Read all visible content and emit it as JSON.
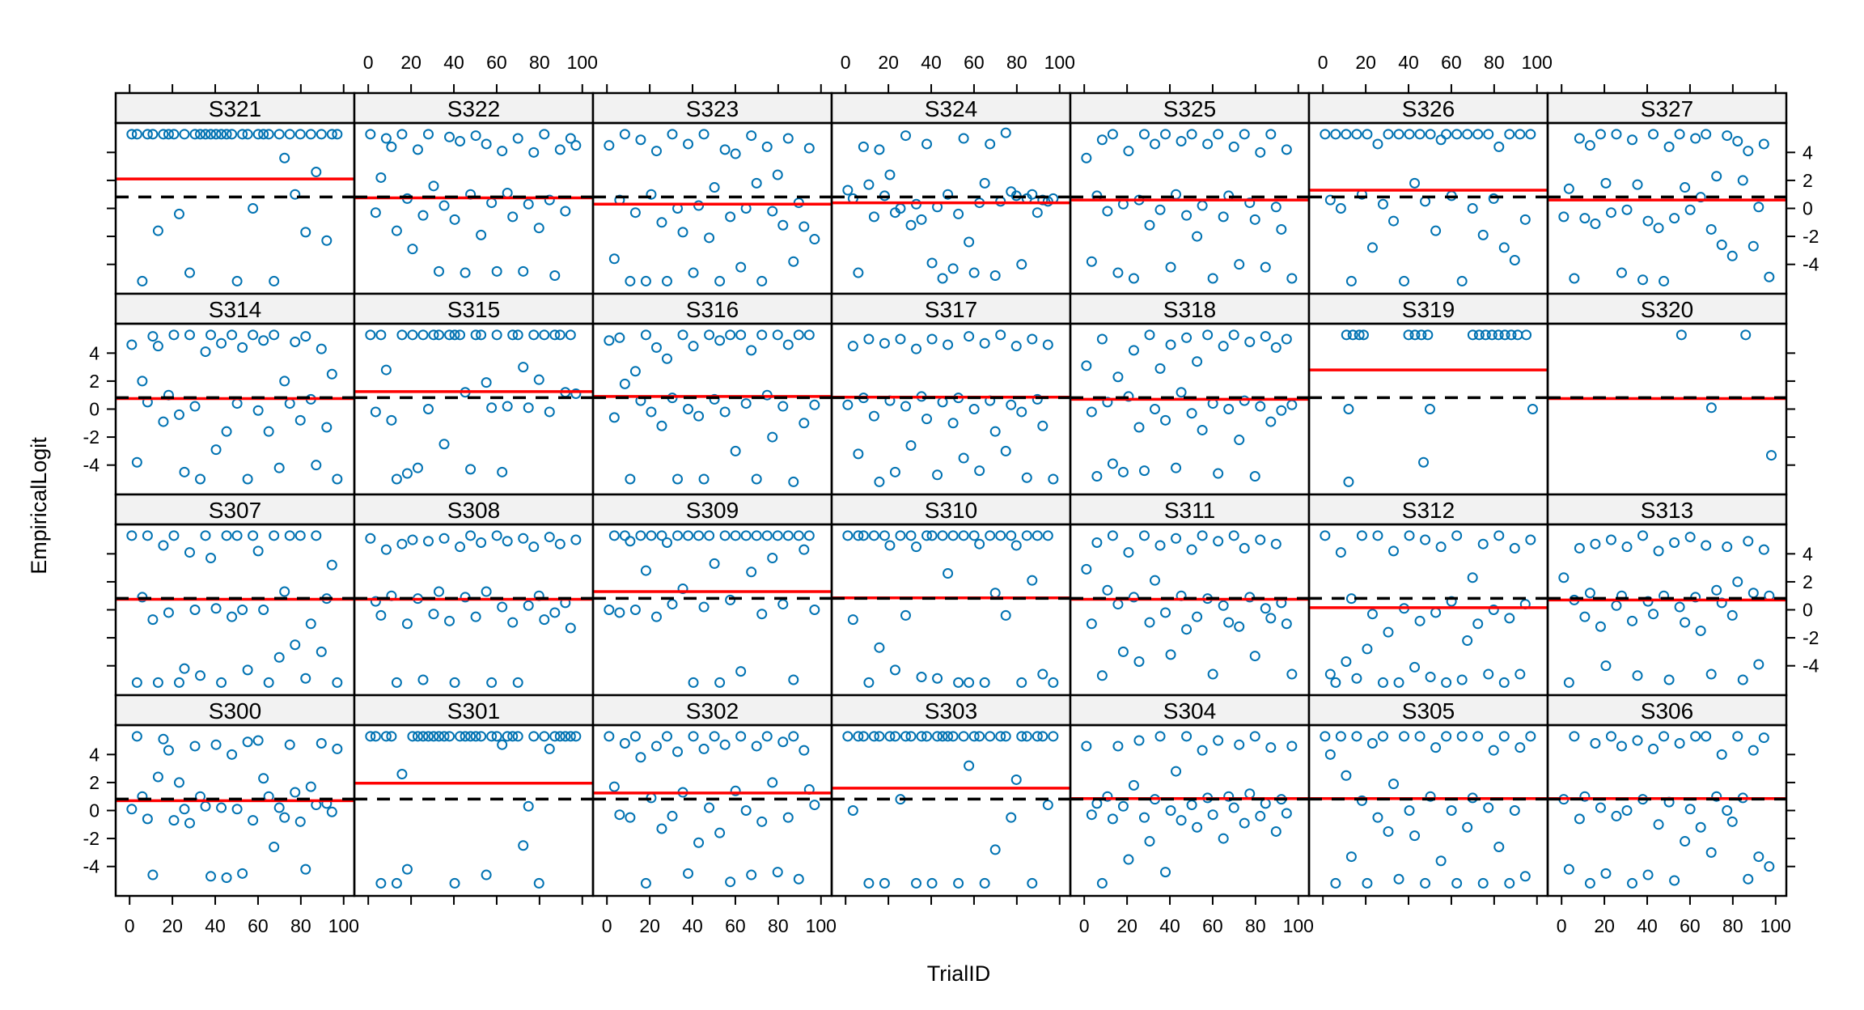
{
  "chart_data": {
    "type": "scatter",
    "layout": "lattice 7 columns x 4 rows",
    "xlabel": "TrialID",
    "ylabel": "EmpiricalLogit",
    "xlim": [
      -6.5,
      105
    ],
    "ylim": [
      -6.1,
      6.1
    ],
    "x_ticks": [
      "0",
      "20",
      "40",
      "60",
      "80",
      "100"
    ],
    "x_tick_values": [
      0,
      20,
      40,
      60,
      80,
      100
    ],
    "y_ticks": [
      "-4",
      "-2",
      "0",
      "2",
      "4"
    ],
    "y_tick_values": [
      -4,
      -2,
      0,
      2,
      4
    ],
    "reference_line": 0.82,
    "colors": {
      "points": "#0072B2",
      "mean_line": "#ff0000",
      "reference_line": "#000000",
      "strip": "#f2f2f2"
    },
    "panels": [
      {
        "name": "S321",
        "mean": 2.1,
        "y": [
          5.3,
          5.3,
          -5.2,
          5.3,
          5.3,
          -1.6,
          5.3,
          5.3,
          5.3,
          -0.4,
          5.3,
          -4.6,
          5.3,
          5.3,
          5.3,
          5.3,
          5.3,
          5.3,
          5.3,
          5.3,
          -5.2,
          5.3,
          5.3,
          0,
          5.3,
          5.3,
          5.3,
          -5.2,
          5.3,
          3.6,
          5.3,
          1.0,
          5.3,
          -1.7,
          5.3,
          2.6,
          5.3,
          -2.3,
          5.3,
          5.3
        ]
      },
      {
        "name": "S322",
        "mean": 0.75,
        "y": [
          5.3,
          -0.3,
          2.2,
          5.0,
          4.4,
          -1.6,
          5.3,
          0.7,
          -2.9,
          4.2,
          -0.5,
          5.3,
          1.6,
          -4.5,
          0.2,
          5.1,
          -0.8,
          4.8,
          -4.6,
          1.0,
          5.2,
          -1.9,
          4.6,
          0.4,
          -4.5,
          4.1,
          1.1,
          -0.6,
          5.0,
          -4.5,
          0.3,
          4.0,
          -1.4,
          5.3,
          0.6,
          -4.8,
          4.2,
          -0.2,
          5.0,
          4.5
        ]
      },
      {
        "name": "S323",
        "mean": 0.3,
        "y": [
          4.5,
          -3.6,
          0.6,
          5.3,
          -5.2,
          -0.3,
          4.9,
          -5.2,
          1.0,
          4.1,
          -1.0,
          -5.2,
          5.3,
          0.0,
          -1.7,
          4.6,
          -4.6,
          0.2,
          5.3,
          -2.1,
          1.5,
          -5.2,
          4.2,
          -0.6,
          3.9,
          -4.2,
          0.0,
          5.2,
          1.8,
          -5.2,
          4.4,
          -0.2,
          2.4,
          -1.2,
          5.0,
          -3.8,
          0.4,
          -1.3,
          4.3,
          -2.2
        ]
      },
      {
        "name": "S324",
        "mean": 0.4,
        "y": [
          1.3,
          0.7,
          -4.6,
          4.4,
          1.7,
          -0.6,
          4.2,
          0.9,
          2.4,
          -0.3,
          0.0,
          5.2,
          -1.2,
          0.3,
          -0.8,
          4.6,
          -3.9,
          0.1,
          -5.0,
          1.0,
          -4.3,
          -0.4,
          5.0,
          -2.4,
          -4.6,
          0.4,
          1.8,
          4.6,
          -4.8,
          0.5,
          5.4,
          1.2,
          0.9,
          -4.0,
          0.7,
          1.0,
          -0.3,
          0.6,
          0.5,
          0.7
        ]
      },
      {
        "name": "S325",
        "mean": 0.6,
        "y": [
          3.6,
          -3.8,
          0.9,
          4.9,
          -0.2,
          5.3,
          -4.6,
          0.3,
          4.1,
          -5.0,
          0.6,
          5.3,
          -1.2,
          4.6,
          -0.1,
          5.3,
          -4.2,
          1.0,
          4.8,
          -0.5,
          5.3,
          -2.0,
          0.2,
          4.6,
          -5.0,
          5.3,
          -0.6,
          0.9,
          4.4,
          -4.0,
          5.3,
          0.4,
          -0.8,
          4.0,
          -4.2,
          5.3,
          0.1,
          -1.5,
          4.2,
          -5.0
        ]
      },
      {
        "name": "S326",
        "mean": 1.3,
        "y": [
          5.3,
          0.6,
          5.3,
          0.0,
          5.3,
          -5.2,
          5.3,
          1.0,
          5.3,
          -2.8,
          4.6,
          0.3,
          5.3,
          -0.9,
          5.3,
          -5.2,
          5.3,
          1.8,
          5.3,
          0.5,
          5.3,
          -1.6,
          4.9,
          5.3,
          0.9,
          5.3,
          -5.2,
          5.3,
          0.0,
          5.3,
          -1.9,
          5.3,
          0.7,
          4.4,
          -2.8,
          5.3,
          -3.7,
          5.3,
          -0.8,
          5.3
        ]
      },
      {
        "name": "S327",
        "mean": 0.6,
        "y": [
          -0.6,
          1.4,
          -5.0,
          5.0,
          -0.7,
          4.5,
          -1.1,
          5.3,
          1.8,
          -0.3,
          5.3,
          -4.6,
          -0.1,
          4.9,
          1.7,
          -5.1,
          -0.9,
          5.3,
          -1.4,
          -5.2,
          4.4,
          -0.7,
          5.3,
          1.5,
          -0.1,
          5.0,
          0.8,
          5.3,
          -1.5,
          2.3,
          -2.6,
          5.2,
          -3.4,
          4.8,
          2.0,
          4.1,
          -2.7,
          0.1,
          4.6,
          -4.9
        ]
      },
      {
        "name": "S314",
        "mean": 0.75,
        "y": [
          4.6,
          -3.8,
          2.0,
          0.5,
          5.2,
          4.5,
          -0.9,
          1.0,
          5.3,
          -0.4,
          -4.5,
          5.3,
          0.2,
          -5.0,
          4.1,
          5.3,
          -2.9,
          4.7,
          -1.6,
          5.3,
          0.4,
          4.4,
          -5.0,
          5.3,
          -0.1,
          4.9,
          -1.6,
          5.3,
          -4.2,
          2.0,
          0.4,
          4.8,
          -0.8,
          5.2,
          0.7,
          -4.0,
          4.3,
          -1.3,
          2.5,
          -5.0
        ]
      },
      {
        "name": "S315",
        "mean": 1.25,
        "y": [
          5.3,
          -0.2,
          5.3,
          2.8,
          -0.8,
          -5.0,
          5.3,
          -4.6,
          5.3,
          -4.2,
          5.3,
          0.0,
          5.3,
          5.3,
          -2.5,
          5.3,
          5.3,
          5.3,
          1.2,
          -4.3,
          5.3,
          5.3,
          1.9,
          0.1,
          5.3,
          -4.5,
          0.2,
          5.3,
          5.3,
          3.0,
          0.1,
          5.3,
          2.1,
          5.3,
          -0.2,
          5.3,
          5.3,
          1.2,
          5.3,
          1.1
        ]
      },
      {
        "name": "S316",
        "mean": 0.9,
        "y": [
          4.9,
          -0.6,
          5.1,
          1.8,
          -5.0,
          2.7,
          0.6,
          5.3,
          -0.2,
          4.4,
          -1.2,
          3.6,
          0.8,
          -5.0,
          5.3,
          0.0,
          4.5,
          -0.5,
          -5.0,
          5.3,
          0.7,
          4.9,
          -0.2,
          5.3,
          -3.0,
          5.3,
          0.4,
          4.2,
          -5.0,
          5.3,
          1.0,
          -2.0,
          5.3,
          0.2,
          4.6,
          -5.2,
          5.3,
          -1.0,
          5.3,
          0.3
        ]
      },
      {
        "name": "S317",
        "mean": 0.85,
        "y": [
          0.3,
          4.5,
          -3.2,
          0.8,
          5.0,
          -0.5,
          -5.2,
          4.7,
          0.6,
          -4.5,
          5.0,
          0.2,
          -2.6,
          4.3,
          0.9,
          -0.7,
          5.0,
          -4.7,
          0.5,
          4.6,
          -1.0,
          0.8,
          -3.5,
          5.2,
          0.0,
          -4.4,
          4.7,
          0.6,
          -1.6,
          5.3,
          -3.0,
          0.3,
          4.5,
          -0.2,
          -4.9,
          5.0,
          0.7,
          -1.2,
          4.6,
          -5.0
        ]
      },
      {
        "name": "S318",
        "mean": 0.7,
        "y": [
          3.1,
          -0.2,
          -4.8,
          5.0,
          0.5,
          -3.9,
          2.3,
          -4.5,
          0.9,
          4.2,
          -1.3,
          -4.4,
          5.3,
          0.0,
          2.9,
          -0.8,
          4.6,
          -4.2,
          1.2,
          5.1,
          -0.3,
          3.4,
          -1.5,
          5.3,
          0.4,
          -4.6,
          4.5,
          0.0,
          5.3,
          -2.2,
          0.6,
          4.8,
          -4.8,
          0.2,
          5.2,
          -0.9,
          4.4,
          -0.1,
          5.0,
          0.3
        ]
      },
      {
        "name": "S319",
        "mean": 2.8,
        "x": [
          11,
          12,
          12,
          14,
          17,
          19,
          40,
          43,
          46,
          47,
          49,
          50,
          70,
          73,
          76,
          79,
          82,
          85,
          88,
          91,
          95,
          98
        ],
        "y": [
          5.3,
          -5.2,
          0.0,
          5.3,
          5.3,
          5.3,
          5.3,
          5.3,
          5.3,
          -3.8,
          5.3,
          0.0,
          5.3,
          5.3,
          5.3,
          5.3,
          5.3,
          5.3,
          5.3,
          5.3,
          5.3,
          0.0
        ]
      },
      {
        "name": "S320",
        "mean": 0.75,
        "x": [
          56,
          70,
          86,
          98
        ],
        "y": [
          5.3,
          0.1,
          5.3,
          -3.3
        ]
      },
      {
        "name": "S307",
        "mean": 0.75,
        "y": [
          5.3,
          -5.2,
          0.9,
          5.3,
          -0.7,
          -5.2,
          4.6,
          -0.2,
          5.3,
          -5.2,
          -4.2,
          4.1,
          0.0,
          -4.7,
          5.3,
          3.7,
          0.1,
          -5.2,
          5.3,
          -0.5,
          5.3,
          0.0,
          -4.3,
          5.3,
          4.2,
          0.0,
          -5.2,
          5.3,
          -3.4,
          1.3,
          5.3,
          -2.5,
          5.3,
          -4.9,
          -1.0,
          5.3,
          -3.0,
          0.8,
          3.2,
          -5.2
        ]
      },
      {
        "name": "S308",
        "mean": 0.75,
        "y": [
          5.1,
          0.6,
          -0.4,
          4.3,
          1.0,
          -5.2,
          4.7,
          -1.0,
          5.0,
          0.8,
          -5.0,
          4.9,
          -0.3,
          1.3,
          5.1,
          -0.8,
          -5.2,
          4.5,
          0.9,
          5.3,
          -0.5,
          4.8,
          1.3,
          -5.2,
          5.3,
          0.2,
          4.9,
          -0.9,
          -5.2,
          5.1,
          0.3,
          4.5,
          1.0,
          -0.7,
          5.2,
          -0.2,
          4.7,
          0.5,
          -1.3,
          5.0
        ]
      },
      {
        "name": "S309",
        "mean": 1.3,
        "y": [
          0.0,
          5.3,
          -0.2,
          5.3,
          4.9,
          0.0,
          5.3,
          2.8,
          5.3,
          -0.5,
          5.3,
          4.8,
          0.4,
          5.3,
          1.5,
          5.3,
          -5.2,
          5.3,
          0.2,
          5.3,
          3.3,
          -5.2,
          5.3,
          0.7,
          5.3,
          -4.4,
          5.3,
          2.7,
          5.3,
          -0.3,
          5.3,
          3.7,
          5.3,
          0.4,
          5.3,
          -5.0,
          5.3,
          4.3,
          5.3,
          0.0
        ]
      },
      {
        "name": "S310",
        "mean": 0.85,
        "y": [
          5.3,
          -0.7,
          5.3,
          5.3,
          -5.2,
          5.3,
          -2.7,
          5.3,
          4.6,
          -4.3,
          5.3,
          -0.4,
          5.3,
          4.5,
          -4.8,
          5.3,
          5.3,
          -4.9,
          5.3,
          2.6,
          5.3,
          -5.2,
          5.3,
          -5.2,
          5.3,
          4.7,
          -5.2,
          5.3,
          1.2,
          5.3,
          -0.4,
          5.3,
          4.6,
          -5.2,
          5.3,
          2.1,
          5.3,
          -4.6,
          5.3,
          -5.2
        ]
      },
      {
        "name": "S311",
        "mean": 0.75,
        "y": [
          2.9,
          -1.0,
          4.8,
          -4.7,
          1.4,
          5.3,
          0.4,
          -3.0,
          4.1,
          0.9,
          -3.7,
          5.3,
          -0.9,
          2.1,
          4.6,
          -0.2,
          -3.2,
          5.1,
          1.0,
          -1.4,
          4.3,
          -0.5,
          5.3,
          0.8,
          -4.6,
          4.9,
          0.3,
          -0.9,
          5.3,
          -1.2,
          4.4,
          0.9,
          -3.3,
          5.0,
          0.1,
          -0.6,
          4.7,
          0.5,
          -1.0,
          -4.6
        ]
      },
      {
        "name": "S312",
        "mean": 0.15,
        "y": [
          5.3,
          -4.6,
          -5.2,
          4.1,
          -3.7,
          0.8,
          -4.9,
          5.3,
          -2.8,
          -0.3,
          5.3,
          -5.2,
          -1.6,
          4.2,
          -5.2,
          0.1,
          5.3,
          -4.1,
          -0.8,
          5.0,
          -4.8,
          -0.2,
          4.5,
          -5.2,
          0.6,
          5.3,
          -5.0,
          -2.2,
          2.3,
          -1.0,
          4.7,
          -4.6,
          0.0,
          5.3,
          -5.2,
          -0.6,
          4.4,
          -4.6,
          0.4,
          5.0
        ]
      },
      {
        "name": "S313",
        "mean": 0.7,
        "y": [
          2.3,
          -5.2,
          0.7,
          4.4,
          -0.5,
          1.2,
          4.7,
          -1.2,
          -4.0,
          5.0,
          0.3,
          1.0,
          4.5,
          -0.8,
          -4.7,
          5.3,
          0.6,
          -0.3,
          4.2,
          1.0,
          -5.0,
          4.8,
          0.2,
          -0.9,
          5.2,
          0.9,
          -1.5,
          4.6,
          -4.6,
          1.4,
          0.5,
          4.5,
          -0.4,
          2.0,
          -5.0,
          4.9,
          1.2,
          -3.9,
          4.3,
          1.0
        ]
      },
      {
        "name": "S300",
        "mean": 0.7,
        "y": [
          0.1,
          5.3,
          1.0,
          -0.6,
          -4.6,
          2.4,
          5.1,
          4.3,
          -0.7,
          2.0,
          0.1,
          -0.9,
          4.6,
          1.0,
          0.3,
          -4.7,
          4.7,
          0.2,
          -4.8,
          4.0,
          0.1,
          -4.5,
          4.9,
          -0.7,
          5.0,
          2.3,
          1.0,
          -2.6,
          0.2,
          -0.5,
          4.7,
          1.3,
          -0.8,
          -4.2,
          1.7,
          0.4,
          4.8,
          0.5,
          -0.1,
          4.4
        ]
      },
      {
        "name": "S301",
        "mean": 1.95,
        "y": [
          5.3,
          5.3,
          -5.2,
          5.3,
          5.3,
          -5.2,
          2.6,
          -4.2,
          5.3,
          5.3,
          5.3,
          5.3,
          5.3,
          5.3,
          5.3,
          5.3,
          -5.2,
          5.3,
          5.3,
          5.3,
          5.3,
          5.3,
          -4.6,
          5.3,
          5.3,
          4.7,
          5.3,
          5.3,
          5.3,
          -2.5,
          0.3,
          5.3,
          -5.2,
          5.3,
          4.4,
          5.3,
          5.3,
          5.3,
          5.3,
          5.3
        ]
      },
      {
        "name": "S302",
        "mean": 1.25,
        "y": [
          5.3,
          1.7,
          -0.3,
          4.8,
          -0.5,
          5.3,
          3.8,
          -5.2,
          0.9,
          4.6,
          -1.3,
          5.3,
          -0.4,
          4.2,
          1.3,
          -4.5,
          5.3,
          -2.3,
          4.4,
          0.2,
          5.3,
          -1.6,
          4.7,
          -5.1,
          1.4,
          5.3,
          0.0,
          -4.6,
          4.6,
          -0.8,
          5.3,
          2.0,
          -4.4,
          4.9,
          -0.5,
          5.3,
          -4.9,
          4.3,
          1.5,
          0.4
        ]
      },
      {
        "name": "S303",
        "mean": 1.6,
        "y": [
          5.3,
          0.0,
          5.3,
          5.3,
          -5.2,
          5.3,
          5.3,
          -5.2,
          5.3,
          5.3,
          0.8,
          5.3,
          5.3,
          -5.2,
          5.3,
          5.3,
          -5.2,
          5.3,
          5.3,
          5.3,
          5.3,
          -5.2,
          5.3,
          3.2,
          5.3,
          5.3,
          -5.2,
          5.3,
          -2.8,
          5.3,
          5.3,
          -0.5,
          2.2,
          5.3,
          5.3,
          -5.2,
          5.3,
          5.3,
          0.4,
          5.3
        ]
      },
      {
        "name": "S304",
        "mean": 0.85,
        "y": [
          4.6,
          -0.3,
          0.5,
          -5.2,
          1.0,
          -0.6,
          4.6,
          0.3,
          -3.5,
          1.8,
          5.0,
          -0.5,
          -2.2,
          0.8,
          5.3,
          -4.4,
          0.0,
          2.8,
          -0.7,
          5.3,
          0.4,
          -1.2,
          4.3,
          0.9,
          -0.3,
          5.0,
          -2.0,
          1.0,
          0.2,
          4.7,
          -0.9,
          1.2,
          5.3,
          -0.4,
          0.5,
          4.5,
          -1.5,
          0.8,
          -0.2,
          4.6
        ]
      },
      {
        "name": "S305",
        "mean": 0.85,
        "y": [
          5.3,
          4.0,
          -5.2,
          5.3,
          2.5,
          -3.3,
          5.3,
          0.7,
          -5.2,
          4.8,
          -0.5,
          5.3,
          -1.5,
          1.9,
          -4.9,
          5.3,
          0.0,
          -1.8,
          5.3,
          -5.2,
          1.0,
          4.5,
          -3.6,
          5.3,
          0.0,
          -5.2,
          5.3,
          -1.2,
          0.9,
          5.3,
          -5.2,
          0.2,
          4.3,
          -2.6,
          5.3,
          -5.2,
          0.0,
          4.5,
          -4.7,
          5.3
        ]
      },
      {
        "name": "S306",
        "mean": 0.85,
        "y": [
          0.8,
          -4.2,
          5.3,
          -0.6,
          1.0,
          -5.2,
          4.8,
          0.2,
          -4.5,
          5.3,
          -0.4,
          4.6,
          0.0,
          -5.2,
          5.0,
          0.8,
          -4.6,
          4.4,
          -1.0,
          5.3,
          0.6,
          -5.0,
          4.8,
          -2.2,
          0.1,
          5.3,
          -1.2,
          5.3,
          -3.0,
          1.0,
          4.0,
          0.0,
          -0.8,
          5.3,
          0.9,
          -4.9,
          4.3,
          -3.3,
          5.2,
          -4.0
        ]
      }
    ]
  }
}
